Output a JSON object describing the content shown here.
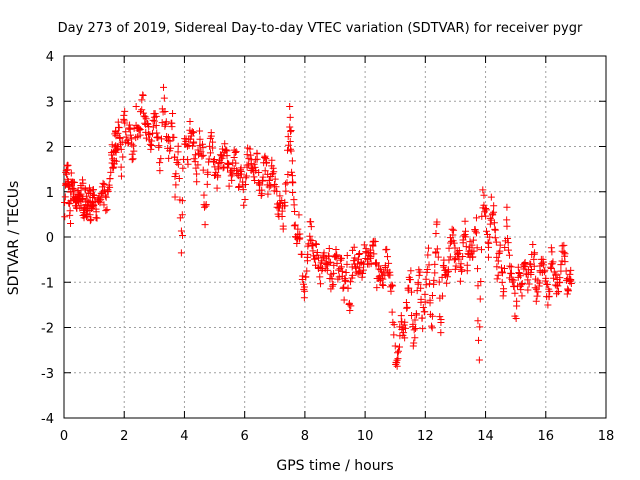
{
  "chart_data": {
    "type": "scatter",
    "title": "Day 273 of 2019, Sidereal Day-to-day VTEC variation (SDTVAR) for receiver pygr",
    "xlabel": "GPS time / hours",
    "ylabel": "SDTVAR / TECUs",
    "xlim": [
      0,
      18
    ],
    "ylim": [
      -4,
      4
    ],
    "x_ticks": [
      0,
      2,
      4,
      6,
      8,
      10,
      12,
      14,
      16,
      18
    ],
    "y_ticks": [
      -4,
      -3,
      -2,
      -1,
      0,
      1,
      2,
      3,
      4
    ],
    "grid": true,
    "marker": "+",
    "series": [
      {
        "name": "SDTVAR",
        "color": "#ff0000",
        "x": [
          0.0,
          0.05,
          0.1,
          0.15,
          0.2,
          0.25,
          0.3,
          0.35,
          0.4,
          0.45,
          0.5,
          0.55,
          0.6,
          0.65,
          0.7,
          0.75,
          0.8,
          0.85,
          0.9,
          0.95,
          1.0,
          1.1,
          1.2,
          1.3,
          1.4,
          1.5,
          1.6,
          1.65,
          1.7,
          1.75,
          1.8,
          1.9,
          2.0,
          2.1,
          2.2,
          2.3,
          2.4,
          2.5,
          2.6,
          2.7,
          2.8,
          2.9,
          3.0,
          3.1,
          3.2,
          3.3,
          3.4,
          3.5,
          3.6,
          3.7,
          3.8,
          3.9,
          4.0,
          4.1,
          4.2,
          4.3,
          4.4,
          4.5,
          4.6,
          4.7,
          4.8,
          4.9,
          5.0,
          5.1,
          5.2,
          5.3,
          5.4,
          5.5,
          5.6,
          5.7,
          5.8,
          5.9,
          6.0,
          6.1,
          6.2,
          6.3,
          6.4,
          6.5,
          6.6,
          6.7,
          6.8,
          6.9,
          7.0,
          7.1,
          7.2,
          7.3,
          7.4,
          7.5,
          7.55,
          7.6,
          7.7,
          7.8,
          7.9,
          8.0,
          8.1,
          8.2,
          8.3,
          8.4,
          8.5,
          8.6,
          8.7,
          8.8,
          8.9,
          9.0,
          9.1,
          9.2,
          9.3,
          9.4,
          9.5,
          9.6,
          9.7,
          9.8,
          9.9,
          10.0,
          10.1,
          10.2,
          10.3,
          10.4,
          10.5,
          10.6,
          10.7,
          10.8,
          10.9,
          11.0,
          11.1,
          11.2,
          11.3,
          11.4,
          11.5,
          11.6,
          11.7,
          11.8,
          11.9,
          12.0,
          12.1,
          12.2,
          12.3,
          12.4,
          12.5,
          12.6,
          12.7,
          12.8,
          12.9,
          13.0,
          13.1,
          13.2,
          13.3,
          13.4,
          13.5,
          13.6,
          13.7,
          13.8,
          13.9,
          14.0,
          14.1,
          14.2,
          14.3,
          14.4,
          14.5,
          14.6,
          14.7,
          14.8,
          14.9,
          15.0,
          15.1,
          15.2,
          15.3,
          15.4,
          15.5,
          15.6,
          15.7,
          15.8,
          15.9,
          16.0,
          16.1,
          16.2,
          16.3,
          16.4,
          16.5,
          16.6,
          16.7,
          16.8
        ],
        "y": [
          0.0,
          1.3,
          1.5,
          1.2,
          0.5,
          1.4,
          0.9,
          1.1,
          0.6,
          1.0,
          0.7,
          0.8,
          1.1,
          0.4,
          0.9,
          0.6,
          0.7,
          1.0,
          0.5,
          0.8,
          0.9,
          0.6,
          0.8,
          1.0,
          0.7,
          1.2,
          1.9,
          1.6,
          2.3,
          1.8,
          2.6,
          1.5,
          2.9,
          2.0,
          2.4,
          1.8,
          2.7,
          2.2,
          3.0,
          2.5,
          2.3,
          2.0,
          2.8,
          2.4,
          1.6,
          3.2,
          2.2,
          1.9,
          2.7,
          1.0,
          2.1,
          -0.5,
          2.3,
          1.8,
          2.5,
          2.0,
          1.4,
          2.2,
          1.9,
          0.4,
          1.7,
          2.1,
          1.5,
          1.2,
          1.9,
          1.7,
          2.0,
          1.3,
          1.6,
          1.8,
          1.1,
          1.5,
          0.8,
          2.0,
          1.6,
          1.4,
          1.8,
          1.1,
          1.2,
          1.9,
          1.0,
          1.6,
          1.2,
          0.5,
          0.8,
          0.3,
          1.3,
          2.7,
          1.8,
          0.9,
          -0.1,
          0.4,
          -0.8,
          -1.2,
          -0.3,
          0.3,
          -0.6,
          -0.2,
          -0.9,
          -0.5,
          -0.7,
          -0.4,
          -1.1,
          -0.3,
          -0.8,
          -0.5,
          -1.3,
          -0.6,
          -1.6,
          -0.4,
          -0.7,
          -0.5,
          -0.8,
          -0.3,
          -0.6,
          -0.4,
          -0.2,
          -0.9,
          -0.7,
          -1.0,
          -0.4,
          -0.8,
          -1.2,
          -2.9,
          -2.5,
          -1.8,
          -2.2,
          -1.4,
          -0.9,
          -2.4,
          -1.7,
          -0.6,
          -2.0,
          -1.3,
          -0.4,
          -2.1,
          -0.8,
          0.3,
          -2.3,
          -0.5,
          -1.0,
          -0.3,
          0.2,
          -0.7,
          -0.4,
          -0.9,
          0.4,
          -0.6,
          -0.3,
          -0.2,
          0.3,
          -2.7,
          0.9,
          0.6,
          -0.5,
          0.8,
          0.2,
          -0.8,
          -0.3,
          -1.3,
          0.5,
          -0.7,
          -0.9,
          -1.7,
          -0.6,
          -1.1,
          -0.4,
          -1.0,
          -0.7,
          -0.2,
          -1.3,
          -0.8,
          -0.5,
          -1.1,
          -1.4,
          -0.3,
          -1.0,
          -1.2,
          -0.7,
          -0.1,
          -1.1,
          -0.9
        ]
      }
    ]
  }
}
